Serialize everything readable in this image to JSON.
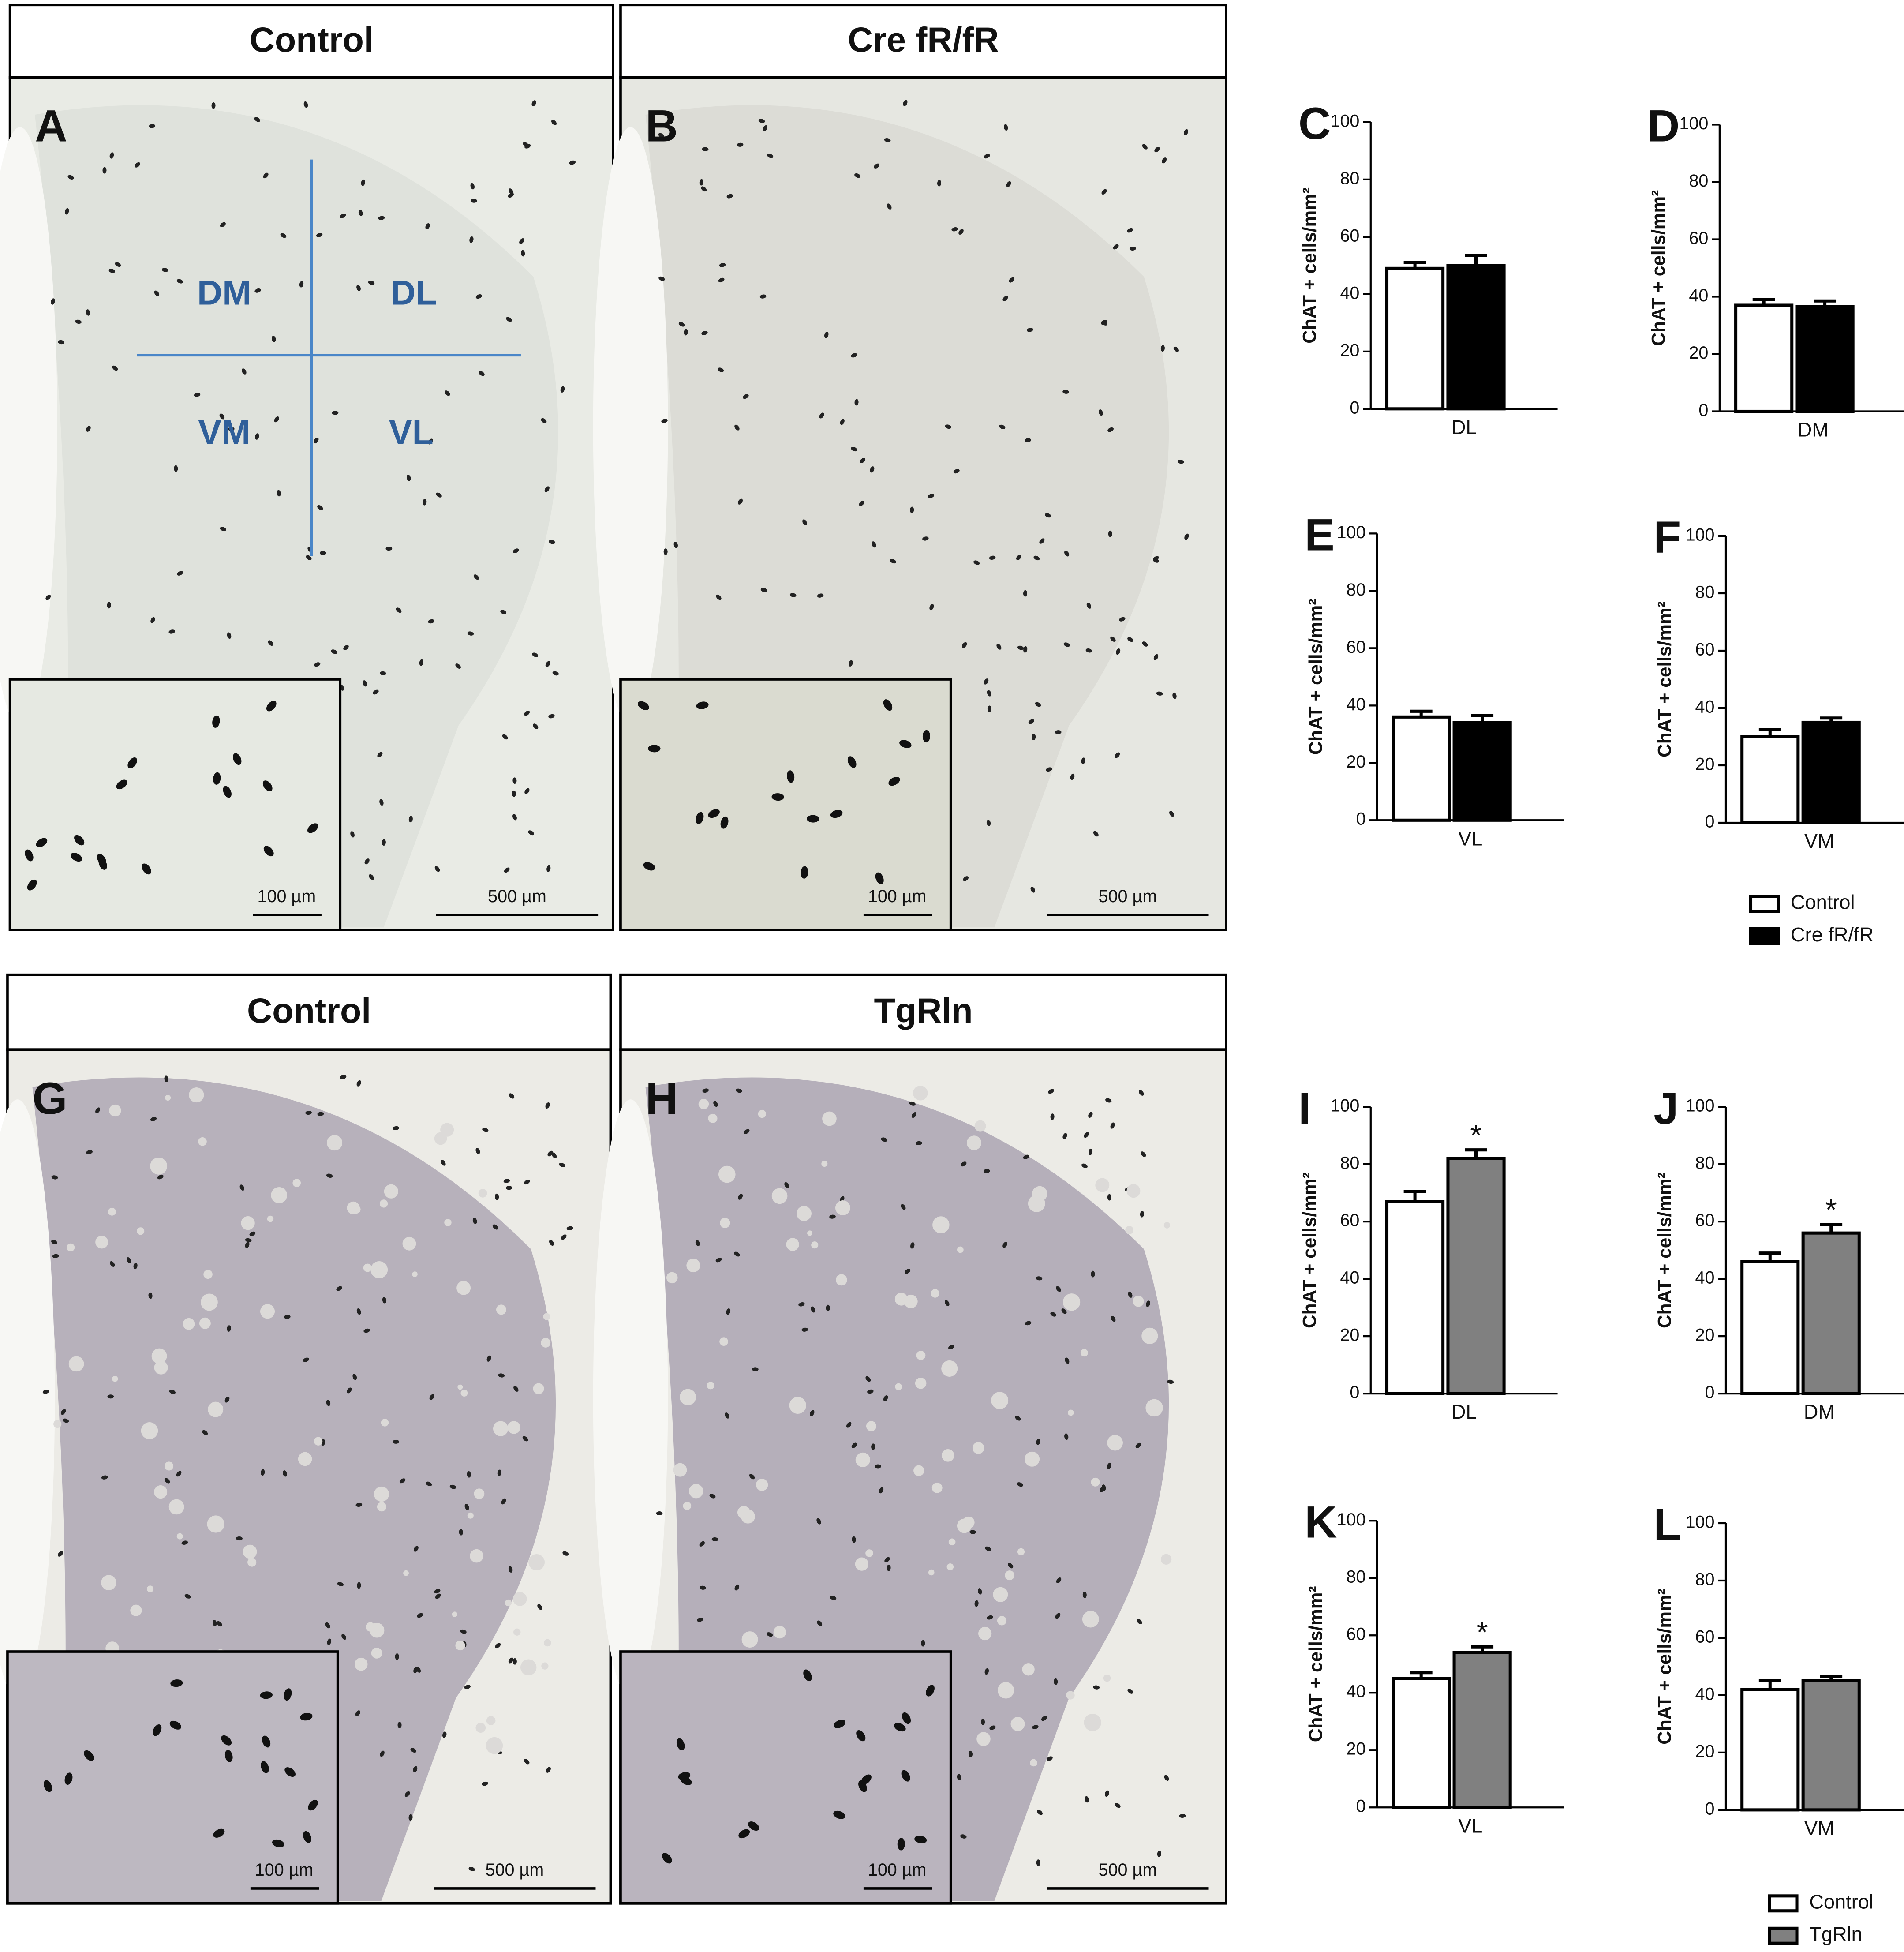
{
  "panels": [
    {
      "title": "Control",
      "letter": "A",
      "regions": [
        "DM",
        "DL",
        "VM",
        "VL"
      ],
      "inset_scale": "100 µm",
      "scale": "500 µm"
    },
    {
      "title": "Cre fR/fR",
      "letter": "B",
      "inset_scale": "100 µm",
      "scale": "500 µm"
    },
    {
      "title": "Control",
      "letter": "G",
      "inset_scale": "100 µm",
      "scale": "500 µm"
    },
    {
      "title": "TgRln",
      "letter": "H",
      "inset_scale": "100 µm",
      "scale": "500 µm"
    }
  ],
  "chart_data": [
    {
      "type": "bar",
      "letter": "C",
      "ylabel": "ChAT + cells/mm²",
      "categories": [
        "DL"
      ],
      "ylim": [
        0,
        100
      ],
      "yticks": [
        0,
        20,
        40,
        60,
        80,
        100
      ],
      "series": [
        {
          "name": "Control",
          "color": "#ffffff",
          "values": [
            49
          ],
          "errors": [
            2
          ]
        },
        {
          "name": "Cre fR/fR",
          "color": "#000000",
          "values": [
            50
          ],
          "errors": [
            3.5
          ]
        }
      ]
    },
    {
      "type": "bar",
      "letter": "D",
      "ylabel": "ChAT + cells/mm²",
      "categories": [
        "DM"
      ],
      "ylim": [
        0,
        100
      ],
      "yticks": [
        0,
        20,
        40,
        60,
        80,
        100
      ],
      "series": [
        {
          "name": "Control",
          "color": "#ffffff",
          "values": [
            37
          ],
          "errors": [
            2
          ]
        },
        {
          "name": "Cre fR/fR",
          "color": "#000000",
          "values": [
            36.5
          ],
          "errors": [
            2
          ]
        }
      ]
    },
    {
      "type": "bar",
      "letter": "E",
      "ylabel": "ChAT + cells/mm²",
      "categories": [
        "VL"
      ],
      "ylim": [
        0,
        100
      ],
      "yticks": [
        0,
        20,
        40,
        60,
        80,
        100
      ],
      "series": [
        {
          "name": "Control",
          "color": "#ffffff",
          "values": [
            36
          ],
          "errors": [
            2
          ]
        },
        {
          "name": "Cre fR/fR",
          "color": "#000000",
          "values": [
            34
          ],
          "errors": [
            2.5
          ]
        }
      ]
    },
    {
      "type": "bar",
      "letter": "F",
      "ylabel": "ChAT + cells/mm²",
      "categories": [
        "VM"
      ],
      "ylim": [
        0,
        100
      ],
      "yticks": [
        0,
        20,
        40,
        60,
        80,
        100
      ],
      "series": [
        {
          "name": "Control",
          "color": "#ffffff",
          "values": [
            30
          ],
          "errors": [
            2.5
          ]
        },
        {
          "name": "Cre fR/fR",
          "color": "#000000",
          "values": [
            35
          ],
          "errors": [
            1.5
          ]
        }
      ]
    },
    {
      "type": "bar",
      "letter": "I",
      "ylabel": "ChAT + cells/mm²",
      "categories": [
        "DL"
      ],
      "ylim": [
        0,
        100
      ],
      "yticks": [
        0,
        20,
        40,
        60,
        80,
        100
      ],
      "annotation": "*",
      "series": [
        {
          "name": "Control",
          "color": "#ffffff",
          "values": [
            67
          ],
          "errors": [
            3.5
          ]
        },
        {
          "name": "TgRln",
          "color": "#808080",
          "values": [
            82
          ],
          "errors": [
            3
          ]
        }
      ]
    },
    {
      "type": "bar",
      "letter": "J",
      "ylabel": "ChAT + cells/mm²",
      "categories": [
        "DM"
      ],
      "ylim": [
        0,
        100
      ],
      "yticks": [
        0,
        20,
        40,
        60,
        80,
        100
      ],
      "annotation": "*",
      "series": [
        {
          "name": "Control",
          "color": "#ffffff",
          "values": [
            46
          ],
          "errors": [
            3
          ]
        },
        {
          "name": "TgRln",
          "color": "#808080",
          "values": [
            56
          ],
          "errors": [
            3
          ]
        }
      ]
    },
    {
      "type": "bar",
      "letter": "K",
      "ylabel": "ChAT + cells/mm²",
      "categories": [
        "VL"
      ],
      "ylim": [
        0,
        100
      ],
      "yticks": [
        0,
        20,
        40,
        60,
        80,
        100
      ],
      "annotation": "*",
      "series": [
        {
          "name": "Control",
          "color": "#ffffff",
          "values": [
            45
          ],
          "errors": [
            2
          ]
        },
        {
          "name": "TgRln",
          "color": "#808080",
          "values": [
            54
          ],
          "errors": [
            2
          ]
        }
      ]
    },
    {
      "type": "bar",
      "letter": "L",
      "ylabel": "ChAT + cells/mm²",
      "categories": [
        "VM"
      ],
      "ylim": [
        0,
        100
      ],
      "yticks": [
        0,
        20,
        40,
        60,
        80,
        100
      ],
      "series": [
        {
          "name": "Control",
          "color": "#ffffff",
          "values": [
            42
          ],
          "errors": [
            3
          ]
        },
        {
          "name": "TgRln",
          "color": "#808080",
          "values": [
            45
          ],
          "errors": [
            1.5
          ]
        }
      ]
    }
  ]
}
